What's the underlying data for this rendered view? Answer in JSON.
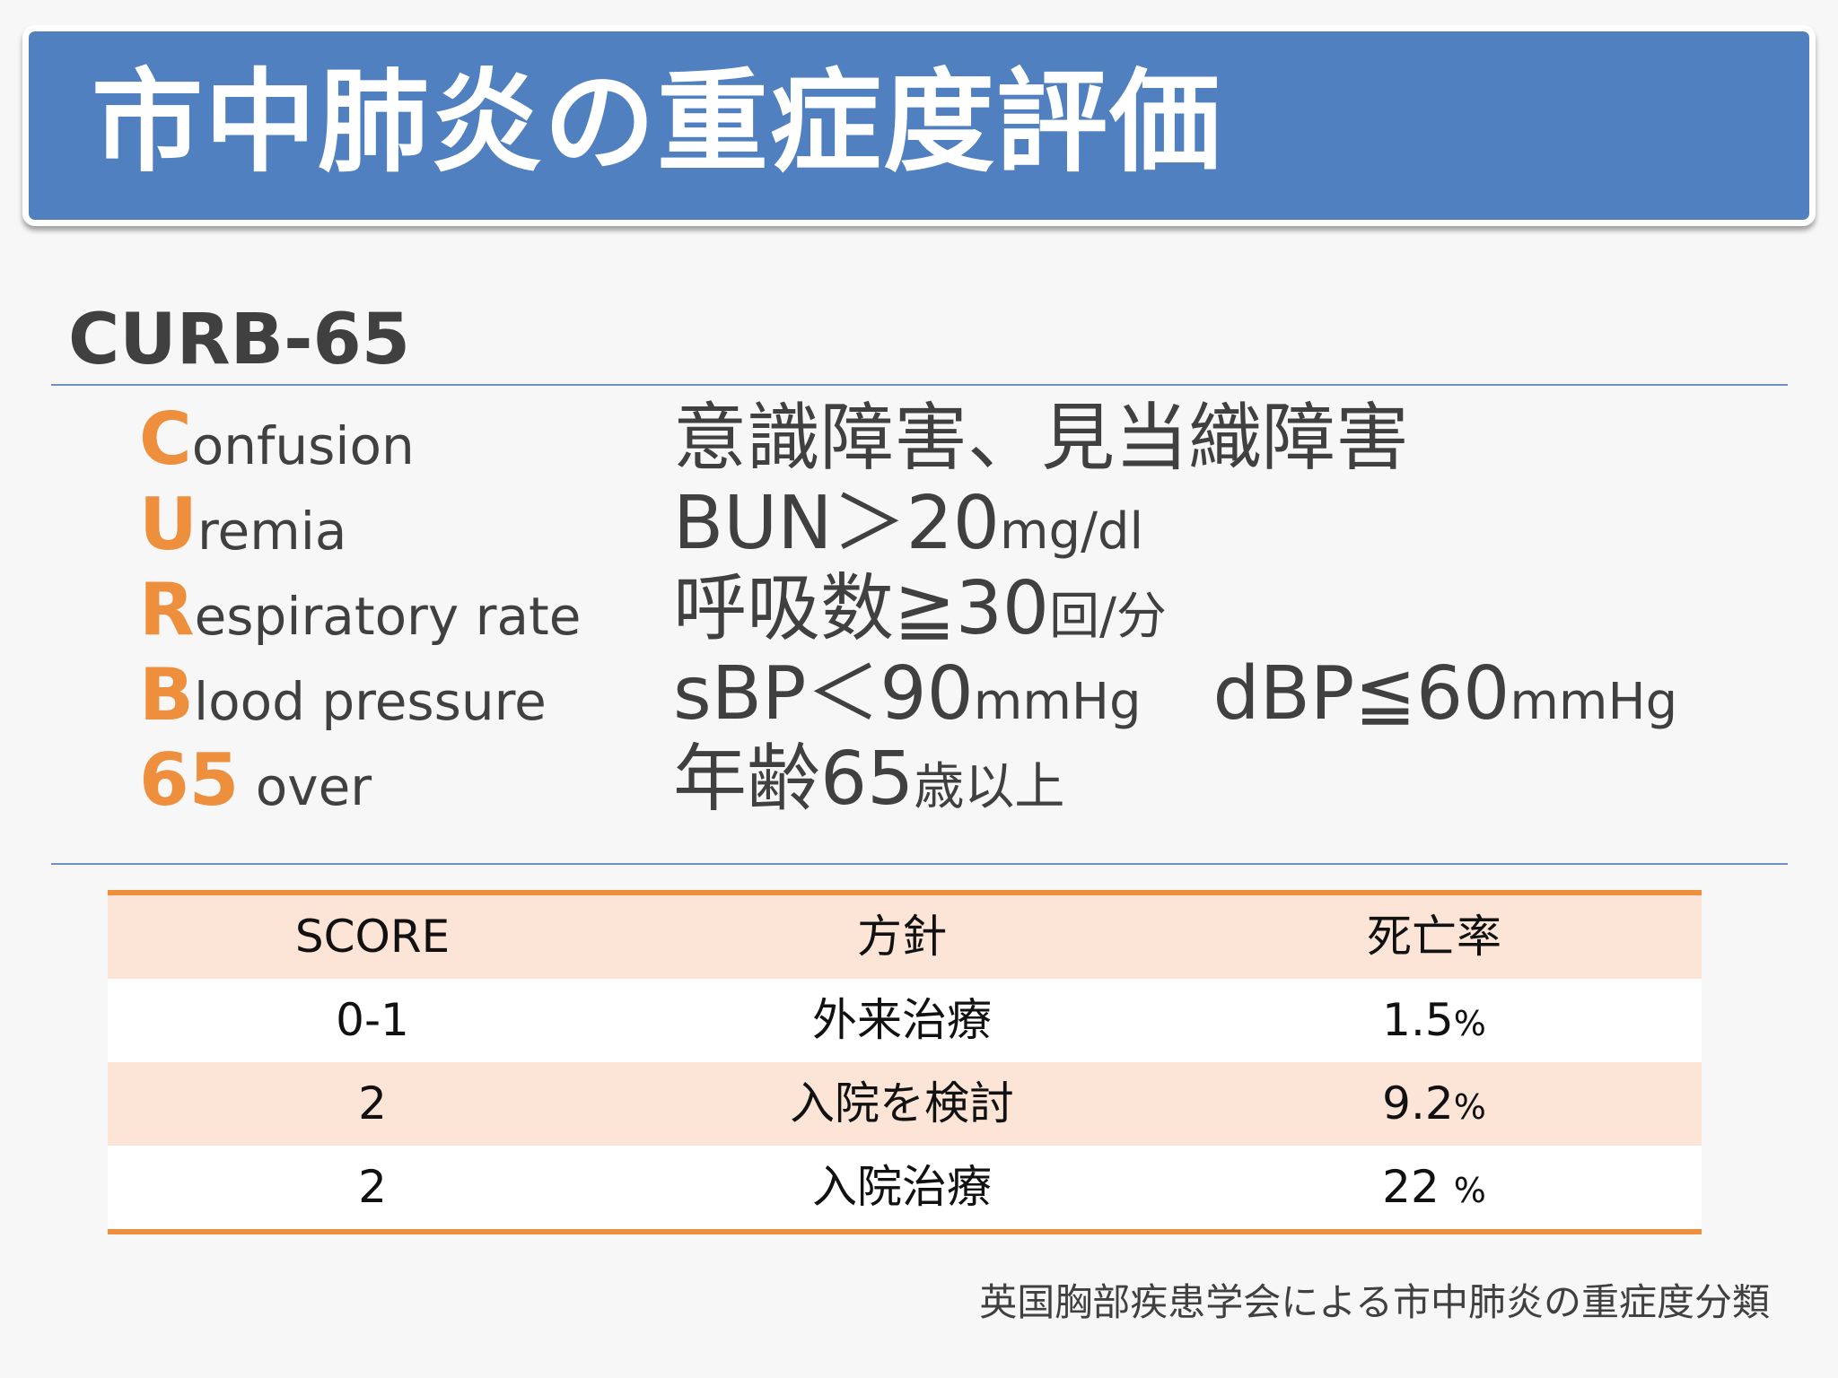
{
  "title": "市中肺炎の重症度評価",
  "section_title": "CURB-65",
  "criteria": [
    {
      "initial": "C",
      "rest": "onfusion",
      "value": "意識障害、見当織障害",
      "unit": ""
    },
    {
      "initial": "U",
      "rest": "remia",
      "value": "BUN＞20",
      "unit": "mg/dl"
    },
    {
      "initial": "R",
      "rest": "espiratory rate",
      "value": "呼吸数≧30",
      "unit": "回/分"
    },
    {
      "initial": "B",
      "rest": "lood pressure",
      "value": "sBP＜90",
      "unit": "mmHg",
      "value2": "dBP≦60",
      "unit2": "mmHg"
    },
    {
      "initial": "65",
      "rest": " over",
      "value": "年齢65",
      "unit": "歳以上"
    }
  ],
  "table": {
    "headers": [
      "SCORE",
      "方針",
      "死亡率"
    ],
    "rows": [
      {
        "score": "0-1",
        "policy": "外来治療",
        "rate": "1.5",
        "unit": "%"
      },
      {
        "score": "2",
        "policy": "入院を検討",
        "rate": "9.2",
        "unit": "%"
      },
      {
        "score": "2",
        "policy": "入院治療",
        "rate": "22 ",
        "unit": "%"
      }
    ]
  },
  "caption": "英国胸部疾患学会による市中肺炎の重症度分類",
  "colors": {
    "banner": "#5080c0",
    "accent": "#ee8f3e",
    "table_header": "#fce4d6",
    "rule": "#6f8fc8"
  }
}
